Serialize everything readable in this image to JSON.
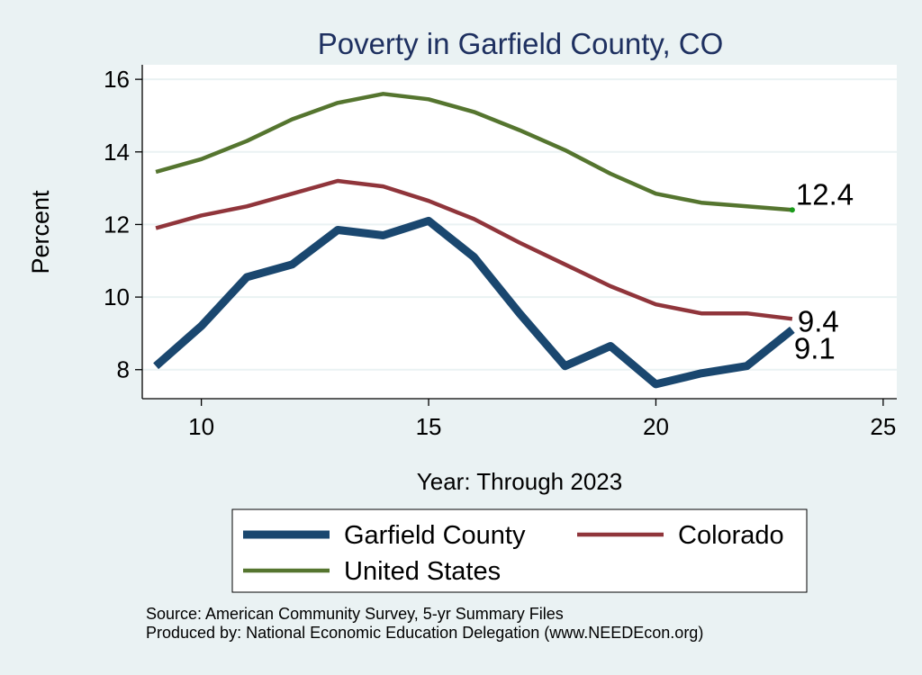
{
  "chart_data": {
    "type": "line",
    "title": "Poverty in Garfield County, CO",
    "xlabel": "Year: Through 2023",
    "ylabel": "Percent",
    "xlim": [
      8.7,
      25.3
    ],
    "ylim": [
      7.2,
      16.4
    ],
    "x_ticks": [
      10,
      15,
      20,
      25
    ],
    "y_ticks": [
      8,
      10,
      12,
      14,
      16
    ],
    "grid": true,
    "x": [
      9,
      10,
      11,
      12,
      13,
      14,
      15,
      16,
      17,
      18,
      19,
      20,
      21,
      22,
      23
    ],
    "series": [
      {
        "name": "Garfield County",
        "color": "#1a476f",
        "values": [
          8.1,
          9.2,
          10.55,
          10.9,
          11.85,
          11.7,
          12.1,
          11.1,
          9.55,
          8.1,
          8.65,
          7.6,
          7.9,
          8.1,
          9.1
        ],
        "end_label": "9.1"
      },
      {
        "name": "Colorado",
        "color": "#90353b",
        "values": [
          11.9,
          12.25,
          12.5,
          12.85,
          13.2,
          13.05,
          12.65,
          12.15,
          11.5,
          10.9,
          10.3,
          9.8,
          9.55,
          9.55,
          9.4
        ],
        "end_label": "9.4"
      },
      {
        "name": "United States",
        "color": "#55752f",
        "values": [
          13.45,
          13.8,
          14.3,
          14.9,
          15.35,
          15.6,
          15.45,
          15.1,
          14.6,
          14.05,
          13.4,
          12.85,
          12.6,
          12.5,
          12.4
        ],
        "end_label": "12.4"
      }
    ],
    "legend": {
      "position": "bottom",
      "entries": [
        "Garfield County",
        "Colorado",
        "United States"
      ]
    },
    "notes": [
      "Source: American Community Survey, 5-yr Summary Files",
      "Produced by: National Economic Education Delegation (www.NEEDEcon.org)"
    ]
  }
}
